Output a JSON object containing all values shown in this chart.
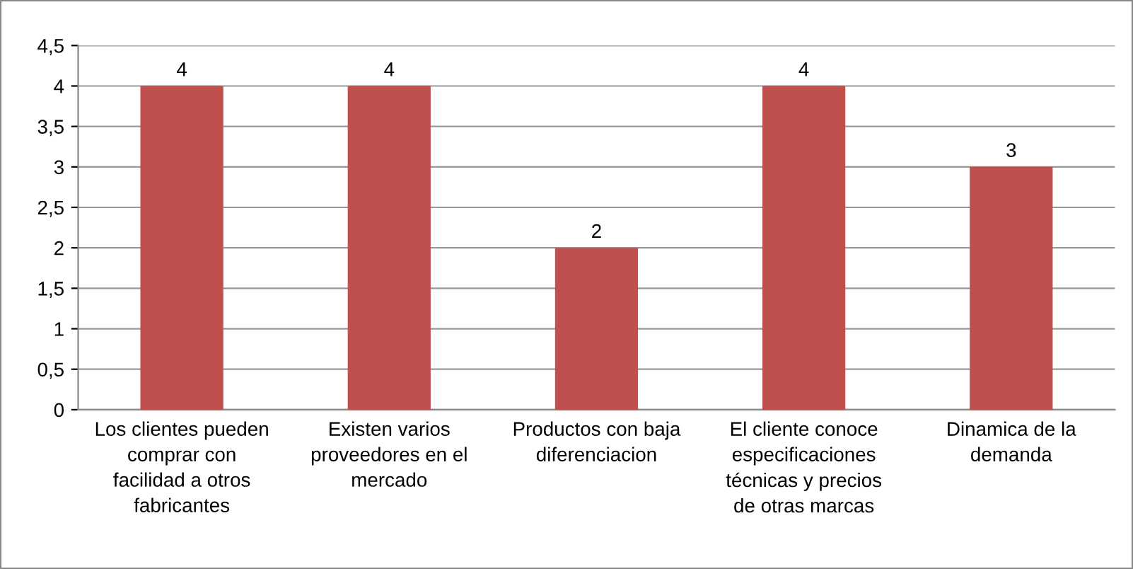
{
  "chart_data": {
    "type": "bar",
    "categories": [
      "Los clientes pueden\ncomprar con\nfacilidad a otros\nfabricantes",
      "Existen varios\nproveedores en el\nmercado",
      "Productos con baja\ndiferenciacion",
      "El cliente conoce\nespecificaciones\ntécnicas y precios\nde otras marcas",
      "Dinamica de la\ndemanda"
    ],
    "values": [
      4,
      4,
      2,
      4,
      3
    ],
    "color": "#c0504d",
    "ylim": [
      0,
      4.5
    ],
    "yticks": [
      0,
      {
        "value": 0.5,
        "label": "0,5"
      },
      1,
      {
        "value": 1.5,
        "label": "1,5"
      },
      2,
      {
        "value": 2.5,
        "label": "2,5"
      },
      3,
      {
        "value": 3.5,
        "label": "3,5"
      },
      4,
      {
        "value": 4.5,
        "label": "4,5"
      }
    ],
    "grid": "y",
    "data_labels": true
  }
}
